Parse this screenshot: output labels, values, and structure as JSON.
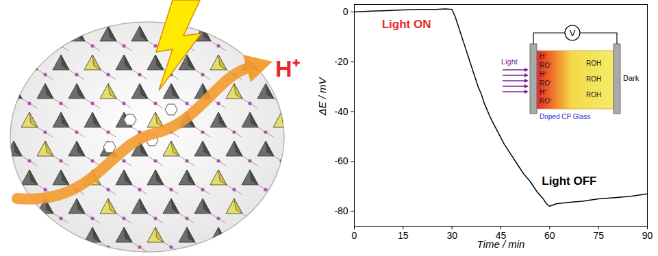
{
  "chart_data": {
    "type": "line",
    "x_label": "Time / min",
    "y_label": "ΔE / mV",
    "x": [
      0,
      5,
      10,
      15,
      20,
      25,
      28,
      30,
      31,
      32,
      33,
      34,
      35,
      36,
      37,
      38,
      39,
      40,
      42,
      44,
      46,
      48,
      50,
      52,
      54,
      56,
      58,
      59,
      60,
      61,
      62,
      65,
      70,
      75,
      80,
      85,
      90
    ],
    "values": [
      0,
      0.3,
      0.5,
      0.8,
      1,
      1,
      1.2,
      1,
      -2,
      -6,
      -10,
      -14,
      -18,
      -22,
      -26,
      -30,
      -33,
      -37,
      -43,
      -48,
      -53,
      -57,
      -61,
      -65,
      -68,
      -72,
      -75,
      -77,
      -78,
      -77.5,
      -77,
      -76.5,
      -76,
      -75,
      -74.5,
      -74,
      -73
    ],
    "color": "#000000",
    "xlim": [
      0,
      90
    ],
    "xticks": [
      0,
      15,
      30,
      45,
      60,
      75,
      90
    ],
    "ylim": [
      -86,
      3
    ],
    "yticks": [
      -80,
      -60,
      -40,
      -20,
      0
    ],
    "grid": false,
    "annotations": [
      {
        "text": "Light ON",
        "x": 16,
        "y": -5,
        "color": "#e8262b"
      },
      {
        "text": "Light OFF",
        "x": 66,
        "y": -68,
        "color": "#000000"
      }
    ],
    "inset": {
      "meter": "V",
      "light": "Light",
      "dark": "Dark",
      "glass": "Doped CP Glass",
      "left_labels": [
        "H⁺",
        "RO⁻",
        "H⁺",
        "RO⁻",
        "H⁺",
        "RO⁻"
      ],
      "right_labels": [
        "ROH",
        "ROH",
        "ROH"
      ]
    }
  },
  "diagram": {
    "label": "H⁺"
  }
}
